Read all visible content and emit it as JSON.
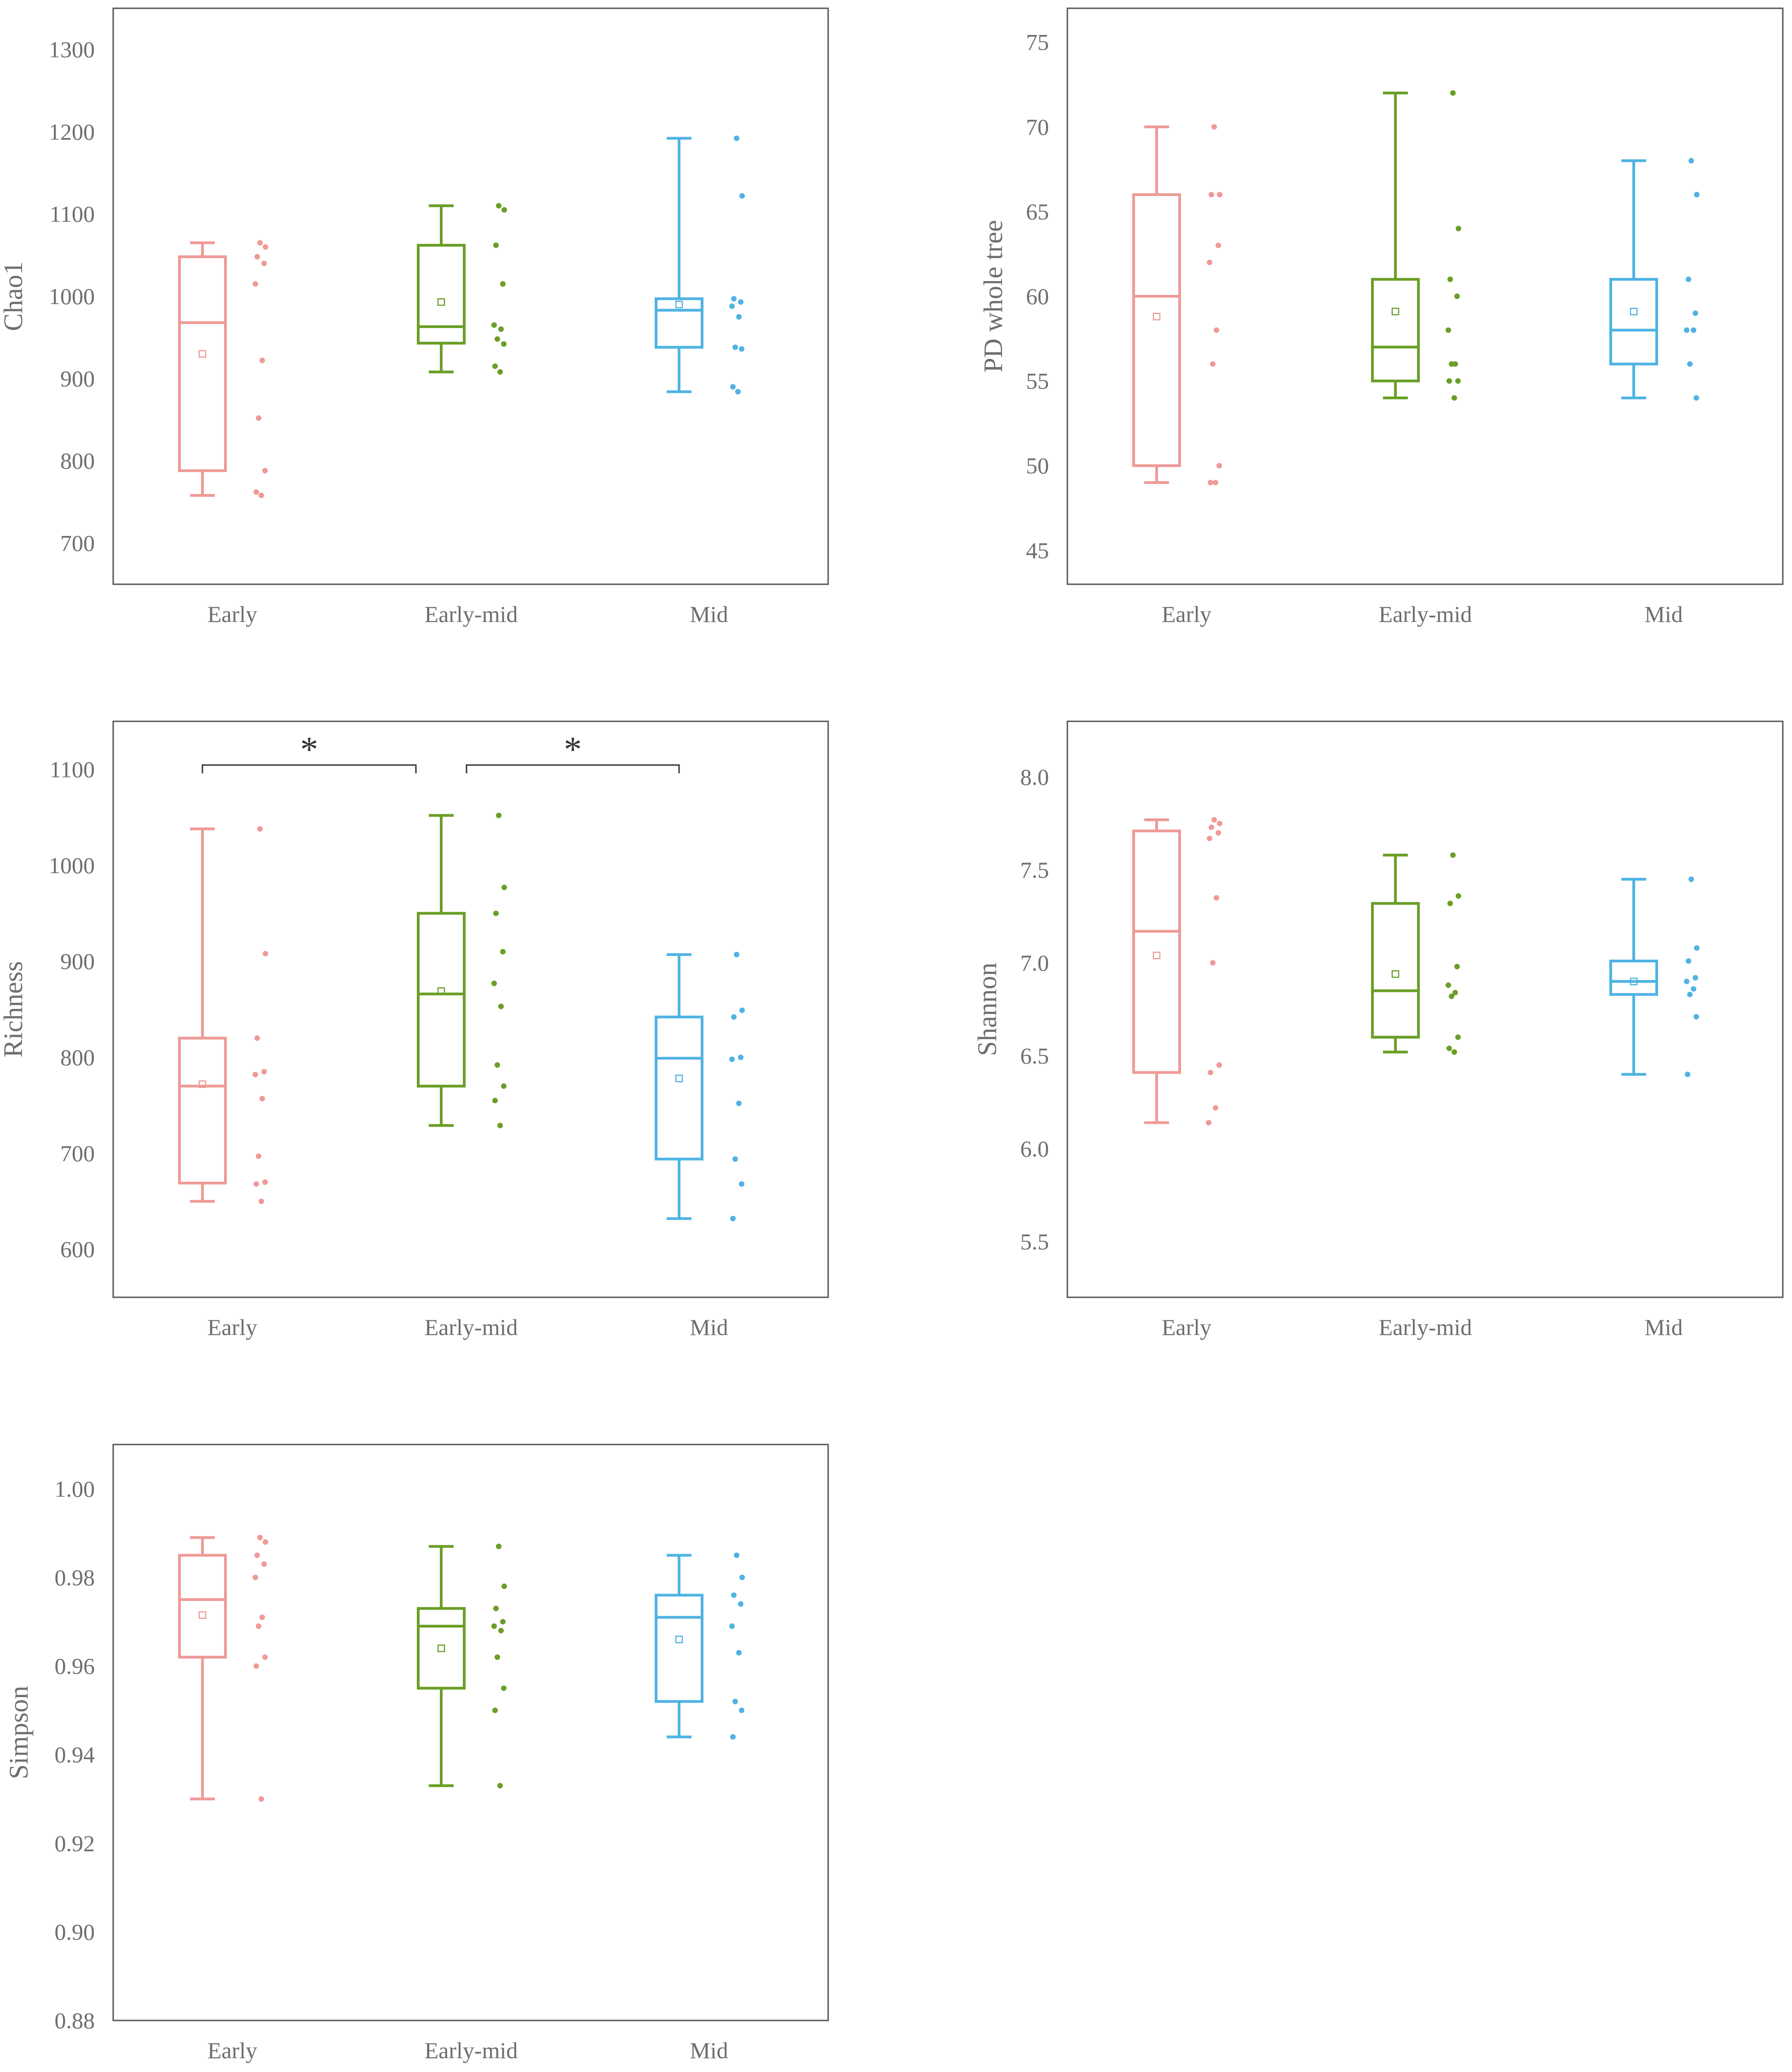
{
  "colors": {
    "Early": "#ef9a96",
    "Early-mid": "#6a9e26",
    "Mid": "#4fb3e3",
    "frame": "#555555",
    "significance": "#333333"
  },
  "chart_data": [
    {
      "type": "box",
      "ylabel": "Chao1",
      "ylim": [
        650,
        1350
      ],
      "ticks": [
        700,
        800,
        900,
        1000,
        1100,
        1200,
        1300
      ],
      "tick_decimals": 0,
      "categories": [
        "Early",
        "Early-mid",
        "Mid"
      ],
      "boxes": [
        {
          "category": "Early",
          "min": 758,
          "q1": 788,
          "median": 968,
          "q3": 1048,
          "max": 1065,
          "mean": 930,
          "points": [
            1065,
            1060,
            1048,
            1040,
            1015,
            922,
            852,
            788,
            762,
            758
          ]
        },
        {
          "category": "Early-mid",
          "min": 908,
          "q1": 943,
          "median": 963,
          "q3": 1062,
          "max": 1110,
          "mean": 993,
          "points": [
            1110,
            1105,
            1062,
            1015,
            965,
            960,
            948,
            942,
            915,
            908
          ]
        },
        {
          "category": "Mid",
          "min": 884,
          "q1": 938,
          "median": 983,
          "q3": 997,
          "max": 1192,
          "mean": 990,
          "points": [
            1192,
            1122,
            997,
            993,
            988,
            975,
            938,
            936,
            890,
            884
          ]
        }
      ],
      "significance": []
    },
    {
      "type": "box",
      "ylabel": "PD whole tree",
      "ylim": [
        43,
        77
      ],
      "ticks": [
        45,
        50,
        55,
        60,
        65,
        70,
        75
      ],
      "tick_decimals": 0,
      "categories": [
        "Early",
        "Early-mid",
        "Mid"
      ],
      "boxes": [
        {
          "category": "Early",
          "min": 49,
          "q1": 50,
          "median": 60,
          "q3": 66,
          "max": 70,
          "mean": 58.8,
          "points": [
            70,
            66,
            66,
            63,
            62,
            58,
            56,
            50,
            49,
            49
          ]
        },
        {
          "category": "Early-mid",
          "min": 54,
          "q1": 55,
          "median": 57,
          "q3": 61,
          "max": 72,
          "mean": 59.1,
          "points": [
            72,
            64,
            61,
            60,
            58,
            56,
            56,
            55,
            55,
            54
          ]
        },
        {
          "category": "Mid",
          "min": 54,
          "q1": 56,
          "median": 58,
          "q3": 61,
          "max": 68,
          "mean": 59.1,
          "points": [
            68,
            66,
            61,
            59,
            58,
            58,
            56,
            54
          ]
        }
      ],
      "significance": []
    },
    {
      "type": "box",
      "ylabel": "Richness",
      "ylim": [
        550,
        1150
      ],
      "ticks": [
        600,
        700,
        800,
        900,
        1000,
        1100
      ],
      "tick_decimals": 0,
      "categories": [
        "Early",
        "Early-mid",
        "Mid"
      ],
      "boxes": [
        {
          "category": "Early",
          "min": 650,
          "q1": 669,
          "median": 770,
          "q3": 820,
          "max": 1038,
          "mean": 772,
          "points": [
            1038,
            908,
            820,
            785,
            782,
            757,
            697,
            670,
            668,
            650
          ]
        },
        {
          "category": "Early-mid",
          "min": 729,
          "q1": 770,
          "median": 866,
          "q3": 950,
          "max": 1052,
          "mean": 869,
          "points": [
            1052,
            977,
            950,
            910,
            877,
            853,
            792,
            770,
            755,
            729
          ]
        },
        {
          "category": "Mid",
          "min": 632,
          "q1": 694,
          "median": 799,
          "q3": 842,
          "max": 907,
          "mean": 778,
          "points": [
            907,
            849,
            842,
            800,
            798,
            752,
            694,
            668,
            632
          ]
        }
      ],
      "significance": [
        {
          "from": "Early",
          "to": "Early-mid",
          "label": "*"
        },
        {
          "from": "Early-mid",
          "to": "Mid",
          "label": "*"
        }
      ]
    },
    {
      "type": "box",
      "ylabel": "Shannon",
      "ylim": [
        5.2,
        8.3
      ],
      "ticks": [
        5.5,
        6.0,
        6.5,
        7.0,
        7.5,
        8.0
      ],
      "tick_decimals": 1,
      "categories": [
        "Early",
        "Early-mid",
        "Mid"
      ],
      "boxes": [
        {
          "category": "Early",
          "min": 6.14,
          "q1": 6.41,
          "median": 7.17,
          "q3": 7.71,
          "max": 7.77,
          "mean": 7.04,
          "points": [
            7.77,
            7.75,
            7.73,
            7.7,
            7.67,
            7.35,
            7.0,
            6.45,
            6.41,
            6.22,
            6.14
          ]
        },
        {
          "category": "Early-mid",
          "min": 6.52,
          "q1": 6.6,
          "median": 6.85,
          "q3": 7.32,
          "max": 7.58,
          "mean": 6.94,
          "points": [
            7.58,
            7.36,
            7.32,
            6.98,
            6.88,
            6.84,
            6.82,
            6.6,
            6.54,
            6.52
          ]
        },
        {
          "category": "Mid",
          "min": 6.4,
          "q1": 6.83,
          "median": 6.9,
          "q3": 7.01,
          "max": 7.45,
          "mean": 6.9,
          "points": [
            7.45,
            7.08,
            7.01,
            6.92,
            6.9,
            6.86,
            6.83,
            6.71,
            6.4
          ]
        }
      ],
      "significance": []
    },
    {
      "type": "box",
      "ylabel": "Simpson",
      "ylim": [
        0.88,
        1.01
      ],
      "ticks": [
        0.88,
        0.9,
        0.92,
        0.94,
        0.96,
        0.98,
        1.0
      ],
      "tick_decimals": 2,
      "categories": [
        "Early",
        "Early-mid",
        "Mid"
      ],
      "boxes": [
        {
          "category": "Early",
          "min": 0.93,
          "q1": 0.962,
          "median": 0.975,
          "q3": 0.985,
          "max": 0.989,
          "mean": 0.9715,
          "points": [
            0.989,
            0.988,
            0.985,
            0.983,
            0.98,
            0.971,
            0.969,
            0.962,
            0.96,
            0.93
          ]
        },
        {
          "category": "Early-mid",
          "min": 0.933,
          "q1": 0.955,
          "median": 0.969,
          "q3": 0.973,
          "max": 0.987,
          "mean": 0.964,
          "points": [
            0.987,
            0.978,
            0.973,
            0.97,
            0.969,
            0.968,
            0.962,
            0.955,
            0.95,
            0.933
          ]
        },
        {
          "category": "Mid",
          "min": 0.944,
          "q1": 0.952,
          "median": 0.971,
          "q3": 0.976,
          "max": 0.985,
          "mean": 0.966,
          "points": [
            0.985,
            0.98,
            0.976,
            0.974,
            0.969,
            0.963,
            0.952,
            0.95,
            0.944
          ]
        }
      ],
      "significance": []
    }
  ]
}
